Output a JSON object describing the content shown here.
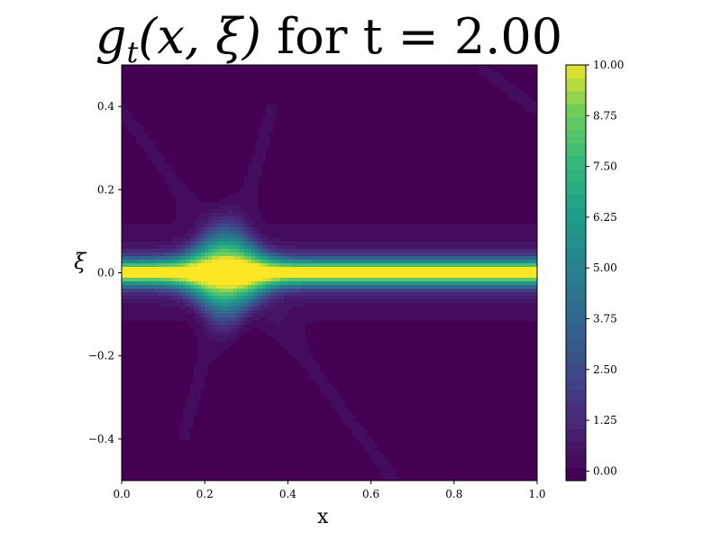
{
  "chart_data": {
    "type": "heatmap",
    "title": {
      "function_symbol": "g",
      "subscript": "t",
      "args": "(x, ξ)",
      "text": " for t = 2.00"
    },
    "xlabel": "x",
    "ylabel": "ξ",
    "xlim": [
      0.0,
      1.0
    ],
    "ylim": [
      -0.5,
      0.5
    ],
    "x_ticks": [
      0.0,
      0.2,
      0.4,
      0.6,
      0.8,
      1.0
    ],
    "x_tick_labels": [
      "0.0",
      "0.2",
      "0.4",
      "0.6",
      "0.8",
      "1.0"
    ],
    "y_ticks": [
      0.4,
      0.2,
      0.0,
      -0.2,
      -0.4
    ],
    "y_tick_labels": [
      "0.4",
      "0.2",
      "0.0",
      "−0.2",
      "−0.4"
    ],
    "colormap": "viridis",
    "colorbar": {
      "min": 0.0,
      "max": 10.0,
      "ticks": [
        0.0,
        1.25,
        2.5,
        3.75,
        5.0,
        6.25,
        7.5,
        8.75,
        10.0
      ],
      "tick_labels": [
        "0.00",
        "1.25",
        "2.50",
        "3.75",
        "5.00",
        "6.25",
        "7.50",
        "8.75",
        "10.00"
      ],
      "levels": 32
    },
    "features": {
      "ridge": {
        "xi": 0.0,
        "peak_value": 10.0
      },
      "bulge": {
        "x_center": 0.25,
        "xi_extent": 0.17
      },
      "faint_diagonals": [
        {
          "from": [
            0.0,
            0.39
          ],
          "to": [
            0.65,
            -0.49
          ]
        },
        {
          "from": [
            0.15,
            -0.39
          ],
          "to": [
            0.36,
            0.39
          ]
        },
        {
          "from": [
            0.87,
            0.49
          ],
          "to": [
            1.0,
            0.39
          ]
        }
      ]
    }
  }
}
